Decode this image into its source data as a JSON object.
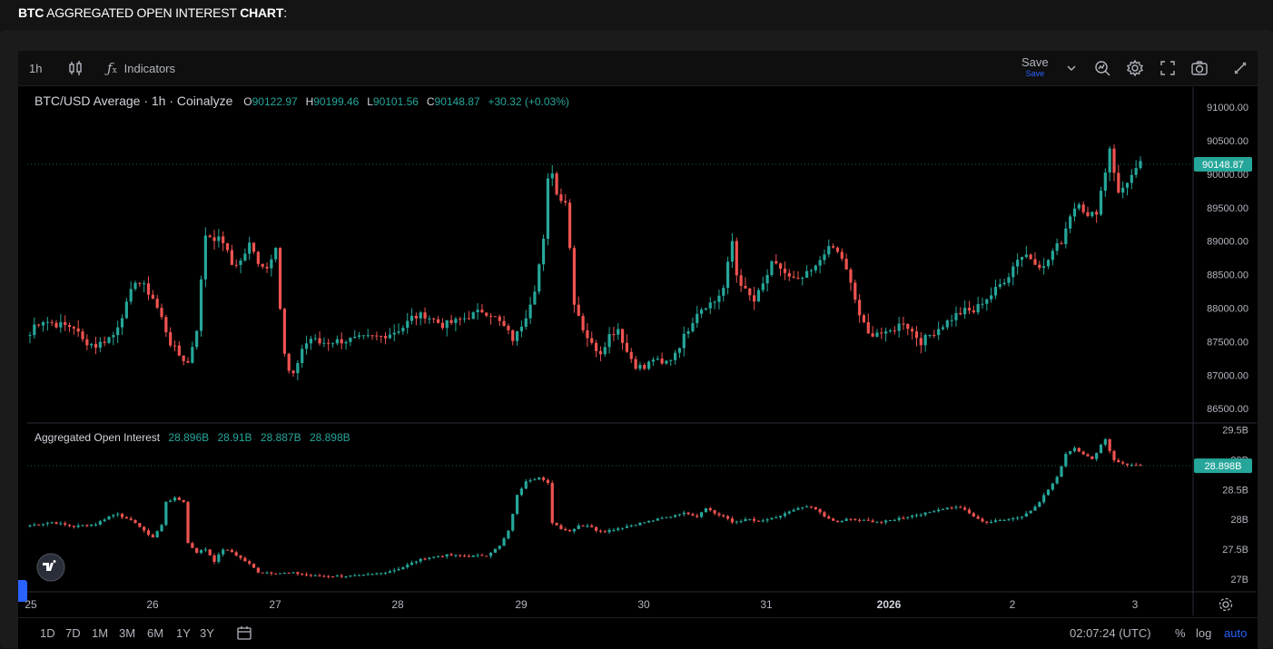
{
  "page": {
    "title_bold1": "BTC",
    "title_mid": " AGGREGATED OPEN INTEREST ",
    "title_bold2": "CHART",
    "title_end": ":"
  },
  "toolbar": {
    "interval": "1h",
    "indicators_label": "Indicators",
    "save_label": "Save",
    "save_sub_label": "Save"
  },
  "legend": {
    "symbol": "BTC/USD Average · 1h · Coinalyze",
    "o_label": "O",
    "o_value": "90122.97",
    "h_label": "H",
    "h_value": "90199.46",
    "l_label": "L",
    "l_value": "90101.56",
    "c_label": "C",
    "c_value": "90148.87",
    "change": "+30.32 (+0.03%)",
    "oi_name": "Aggregated Open Interest",
    "oi_v1": "28.896B",
    "oi_v2": "28.91B",
    "oi_v3": "28.887B",
    "oi_v4": "28.898B"
  },
  "bottombar": {
    "ranges": [
      "1D",
      "7D",
      "1M",
      "3M",
      "6M",
      "1Y",
      "3Y"
    ],
    "clock": "02:07:24 (UTC)",
    "pct": "%",
    "log": "log",
    "auto": "auto"
  },
  "colors": {
    "up": "#26a69a",
    "down": "#ef5350",
    "accent": "#2962ff",
    "background": "#000000"
  },
  "chart_data": [
    {
      "type": "candlestick",
      "title": "BTC/USD Average · 1h · Coinalyze",
      "x_labels": [
        "25",
        "26",
        "27",
        "28",
        "29",
        "30",
        "31",
        "2026",
        "2",
        "3"
      ],
      "y_ticks": [
        "91000.00",
        "90500.00",
        "90000.00",
        "89500.00",
        "89000.00",
        "88500.00",
        "88000.00",
        "87500.00",
        "87000.00",
        "86500.00"
      ],
      "ylim": [
        86300,
        91300
      ],
      "last_value": "90148.87",
      "anchors": [
        [
          0,
          87600
        ],
        [
          1,
          87750
        ],
        [
          3,
          87820
        ],
        [
          6,
          87760
        ],
        [
          10,
          87720
        ],
        [
          12,
          87520
        ],
        [
          15,
          87440
        ],
        [
          19,
          87600
        ],
        [
          22,
          88050
        ],
        [
          24,
          88420
        ],
        [
          26,
          88320
        ],
        [
          28,
          88150
        ],
        [
          30,
          87850
        ],
        [
          32,
          87480
        ],
        [
          34,
          87300
        ],
        [
          36,
          87180
        ],
        [
          38,
          87700
        ],
        [
          39,
          88400
        ],
        [
          40,
          89100
        ],
        [
          42,
          89050
        ],
        [
          44,
          89000
        ],
        [
          46,
          88650
        ],
        [
          48,
          88700
        ],
        [
          50,
          88950
        ],
        [
          52,
          88700
        ],
        [
          54,
          88600
        ],
        [
          56,
          88950
        ],
        [
          57,
          88000
        ],
        [
          58,
          87300
        ],
        [
          59,
          87050
        ],
        [
          60,
          86980
        ],
        [
          61,
          87200
        ],
        [
          62,
          87400
        ],
        [
          64,
          87550
        ],
        [
          66,
          87480
        ],
        [
          68,
          87500
        ],
        [
          72,
          87520
        ],
        [
          76,
          87550
        ],
        [
          80,
          87580
        ],
        [
          83,
          87650
        ],
        [
          85,
          87720
        ],
        [
          87,
          87860
        ],
        [
          90,
          87900
        ],
        [
          94,
          87750
        ],
        [
          97,
          87800
        ],
        [
          100,
          87880
        ],
        [
          103,
          87960
        ],
        [
          105,
          87920
        ],
        [
          108,
          87720
        ],
        [
          110,
          87540
        ],
        [
          111,
          87620
        ],
        [
          113,
          87900
        ],
        [
          115,
          88300
        ],
        [
          117,
          89000
        ],
        [
          118,
          89900
        ],
        [
          119,
          90050
        ],
        [
          120,
          89700
        ],
        [
          122,
          89600
        ],
        [
          123,
          88900
        ],
        [
          124,
          88100
        ],
        [
          126,
          87700
        ],
        [
          128,
          87450
        ],
        [
          130,
          87350
        ],
        [
          132,
          87600
        ],
        [
          134,
          87700
        ],
        [
          136,
          87350
        ],
        [
          138,
          87150
        ],
        [
          140,
          87100
        ],
        [
          142,
          87250
        ],
        [
          144,
          87150
        ],
        [
          146,
          87250
        ],
        [
          148,
          87450
        ],
        [
          150,
          87700
        ],
        [
          152,
          87950
        ],
        [
          154,
          88050
        ],
        [
          156,
          88100
        ],
        [
          158,
          88300
        ],
        [
          160,
          89000
        ],
        [
          161,
          88500
        ],
        [
          163,
          88250
        ],
        [
          165,
          88100
        ],
        [
          167,
          88350
        ],
        [
          169,
          88650
        ],
        [
          171,
          88600
        ],
        [
          173,
          88450
        ],
        [
          175,
          88400
        ],
        [
          177,
          88500
        ],
        [
          179,
          88600
        ],
        [
          181,
          88850
        ],
        [
          183,
          88900
        ],
        [
          185,
          88750
        ],
        [
          187,
          88350
        ],
        [
          189,
          87900
        ],
        [
          191,
          87600
        ],
        [
          193,
          87650
        ],
        [
          195,
          87600
        ],
        [
          197,
          87700
        ],
        [
          199,
          87800
        ],
        [
          201,
          87650
        ],
        [
          203,
          87500
        ],
        [
          205,
          87600
        ],
        [
          207,
          87700
        ],
        [
          209,
          87800
        ],
        [
          211,
          87900
        ],
        [
          213,
          87960
        ],
        [
          215,
          87950
        ],
        [
          217,
          88100
        ],
        [
          219,
          88200
        ],
        [
          221,
          88350
        ],
        [
          223,
          88500
        ],
        [
          225,
          88750
        ],
        [
          227,
          88800
        ],
        [
          229,
          88700
        ],
        [
          231,
          88600
        ],
        [
          233,
          88850
        ],
        [
          235,
          89000
        ],
        [
          237,
          89400
        ],
        [
          239,
          89600
        ],
        [
          241,
          89350
        ],
        [
          243,
          89450
        ],
        [
          245,
          90050
        ],
        [
          246,
          90400
        ],
        [
          247,
          90050
        ],
        [
          248,
          89700
        ],
        [
          250,
          89900
        ],
        [
          252,
          90050
        ],
        [
          253,
          90149
        ]
      ]
    },
    {
      "type": "candlestick",
      "title": "Aggregated Open Interest",
      "y_ticks": [
        "29.5B",
        "29B",
        "28.5B",
        "28B",
        "27.5B",
        "27B"
      ],
      "ylim": [
        26.8,
        29.6
      ],
      "last_value": "28.898B",
      "anchors": [
        [
          0,
          27.9
        ],
        [
          5,
          27.95
        ],
        [
          10,
          27.88
        ],
        [
          15,
          27.92
        ],
        [
          18,
          28.05
        ],
        [
          20,
          28.1
        ],
        [
          22,
          28.0
        ],
        [
          24,
          27.95
        ],
        [
          26,
          27.8
        ],
        [
          28,
          27.7
        ],
        [
          30,
          27.9
        ],
        [
          31,
          28.3
        ],
        [
          33,
          28.35
        ],
        [
          35,
          28.3
        ],
        [
          36,
          27.6
        ],
        [
          38,
          27.45
        ],
        [
          40,
          27.5
        ],
        [
          42,
          27.3
        ],
        [
          44,
          27.5
        ],
        [
          46,
          27.45
        ],
        [
          48,
          27.35
        ],
        [
          50,
          27.25
        ],
        [
          52,
          27.12
        ],
        [
          56,
          27.1
        ],
        [
          60,
          27.1
        ],
        [
          65,
          27.05
        ],
        [
          70,
          27.05
        ],
        [
          75,
          27.05
        ],
        [
          80,
          27.1
        ],
        [
          83,
          27.15
        ],
        [
          85,
          27.2
        ],
        [
          88,
          27.3
        ],
        [
          90,
          27.35
        ],
        [
          95,
          27.4
        ],
        [
          100,
          27.38
        ],
        [
          104,
          27.4
        ],
        [
          107,
          27.55
        ],
        [
          109,
          27.8
        ],
        [
          111,
          28.4
        ],
        [
          113,
          28.65
        ],
        [
          116,
          28.7
        ],
        [
          118,
          28.6
        ],
        [
          119,
          27.95
        ],
        [
          121,
          27.85
        ],
        [
          123,
          27.8
        ],
        [
          125,
          27.9
        ],
        [
          127,
          27.9
        ],
        [
          129,
          27.82
        ],
        [
          131,
          27.8
        ],
        [
          134,
          27.85
        ],
        [
          137,
          27.9
        ],
        [
          140,
          27.95
        ],
        [
          143,
          28.0
        ],
        [
          146,
          28.05
        ],
        [
          148,
          28.1
        ],
        [
          150,
          28.1
        ],
        [
          152,
          28.05
        ],
        [
          154,
          28.2
        ],
        [
          156,
          28.1
        ],
        [
          158,
          28.05
        ],
        [
          160,
          27.95
        ],
        [
          162,
          27.98
        ],
        [
          164,
          28.0
        ],
        [
          166,
          27.95
        ],
        [
          168,
          28.0
        ],
        [
          170,
          28.02
        ],
        [
          172,
          28.1
        ],
        [
          174,
          28.15
        ],
        [
          176,
          28.2
        ],
        [
          178,
          28.2
        ],
        [
          180,
          28.12
        ],
        [
          182,
          28.0
        ],
        [
          184,
          27.95
        ],
        [
          186,
          28.0
        ],
        [
          190,
          27.98
        ],
        [
          194,
          27.95
        ],
        [
          196,
          27.98
        ],
        [
          198,
          28.02
        ],
        [
          200,
          28.05
        ],
        [
          202,
          28.08
        ],
        [
          204,
          28.1
        ],
        [
          206,
          28.15
        ],
        [
          208,
          28.18
        ],
        [
          210,
          28.2
        ],
        [
          212,
          28.2
        ],
        [
          214,
          28.1
        ],
        [
          216,
          28.0
        ],
        [
          218,
          27.95
        ],
        [
          220,
          27.97
        ],
        [
          222,
          28.0
        ],
        [
          224,
          28.02
        ],
        [
          226,
          28.05
        ],
        [
          228,
          28.15
        ],
        [
          230,
          28.3
        ],
        [
          232,
          28.5
        ],
        [
          234,
          28.7
        ],
        [
          236,
          29.1
        ],
        [
          238,
          29.2
        ],
        [
          240,
          29.1
        ],
        [
          242,
          29.0
        ],
        [
          244,
          29.25
        ],
        [
          245,
          29.35
        ],
        [
          246,
          29.15
        ],
        [
          247,
          29.0
        ],
        [
          248,
          28.95
        ],
        [
          250,
          28.92
        ],
        [
          252,
          28.9
        ],
        [
          253,
          28.898
        ]
      ]
    }
  ]
}
